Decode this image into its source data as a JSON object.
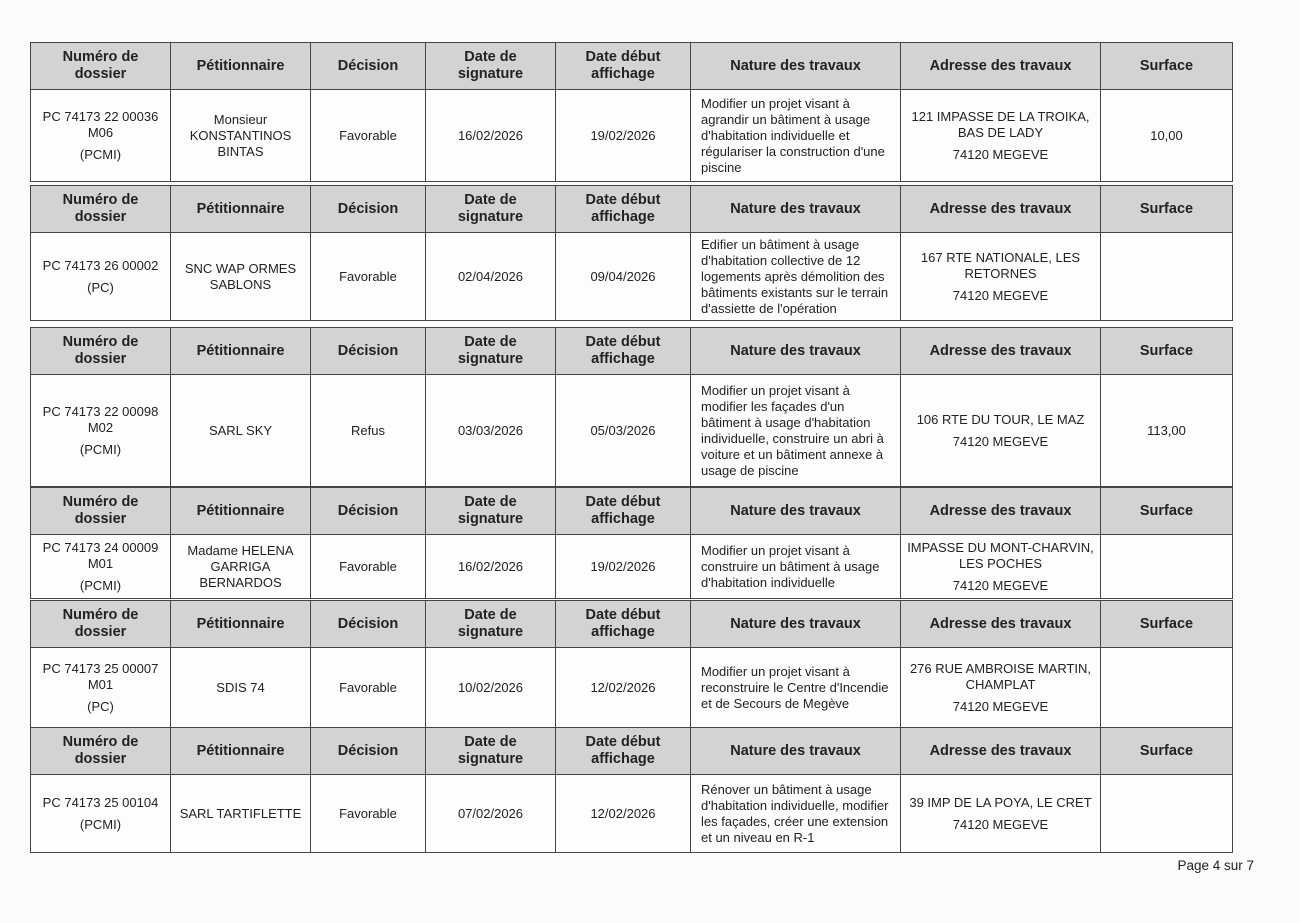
{
  "headers": [
    "Numéro de dossier",
    "Pétitionnaire",
    "Décision",
    "Date de signature",
    "Date début affichage",
    "Nature des travaux",
    "Adresse des travaux",
    "Surface"
  ],
  "tables": [
    {
      "dossier": [
        "PC 74173 22 00036 M06",
        "(PCMI)"
      ],
      "petitioner": "Monsieur KONSTANTINOS BINTAS",
      "decision": "Favorable",
      "signature_date": "16/02/2026",
      "display_date": "19/02/2026",
      "works": "Modifier un projet visant à agrandir un bâtiment à usage d'habitation individuelle et régulariser la construction d'une piscine",
      "address": [
        "121 IMPASSE DE LA TROIKA, BAS DE LADY",
        "74120 MEGEVE"
      ],
      "surface": "10,00"
    },
    {
      "dossier": [
        "PC 74173 26 00002",
        "(PC)"
      ],
      "petitioner": "SNC WAP ORMES SABLONS",
      "decision": "Favorable",
      "signature_date": "02/04/2026",
      "display_date": "09/04/2026",
      "works": "Edifier un bâtiment à usage d'habitation collective de 12 logements après démolition des bâtiments existants sur le terrain d'assiette de l'opération",
      "address": [
        "167 RTE NATIONALE, LES RETORNES",
        "74120 MEGEVE"
      ],
      "surface": null
    },
    {
      "dossier": [
        "PC 74173 22 00098 M02",
        "(PCMI)"
      ],
      "petitioner": "SARL SKY",
      "decision": "Refus",
      "signature_date": "03/03/2026",
      "display_date": "05/03/2026",
      "works": "Modifier un projet visant à modifier les façades d'un bâtiment à usage d'habitation individuelle, construire un abri à voiture et un bâtiment annexe à usage de piscine",
      "address": [
        "106 RTE DU TOUR, LE MAZ",
        "74120 MEGEVE"
      ],
      "surface": "113,00"
    },
    {
      "dossier": [
        "PC 74173 24 00009 M01",
        "(PCMI)"
      ],
      "petitioner": "Madame HELENA GARRIGA BERNARDOS",
      "decision": "Favorable",
      "signature_date": "16/02/2026",
      "display_date": "19/02/2026",
      "works": "Modifier un projet visant à construire un bâtiment à usage d'habitation individuelle",
      "address": [
        "IMPASSE DU MONT-CHARVIN, LES POCHES",
        "74120 MEGEVE"
      ],
      "surface": null
    },
    {
      "dossier": [
        "PC 74173 25 00007 M01",
        "(PC)"
      ],
      "petitioner": "SDIS 74",
      "decision": "Favorable",
      "signature_date": "10/02/2026",
      "display_date": "12/02/2026",
      "works": "Modifier un projet visant à reconstruire le Centre d'Incendie et de Secours de Megève",
      "address": [
        "276 RUE AMBROISE MARTIN, CHAMPLAT",
        "74120 MEGEVE"
      ],
      "surface": null
    },
    {
      "dossier": [
        "PC 74173 25 00104",
        "(PCMI)"
      ],
      "petitioner": "SARL TARTIFLETTE",
      "decision": "Favorable",
      "signature_date": "07/02/2026",
      "display_date": "12/02/2026",
      "works": "Rénover un bâtiment à usage d'habitation individuelle, modifier les façades, créer une extension et un niveau en R-1",
      "address": [
        "39 IMP DE LA POYA, LE CRET",
        "74120 MEGEVE"
      ],
      "surface": null
    }
  ],
  "page_footer": "Page 4 sur 7"
}
